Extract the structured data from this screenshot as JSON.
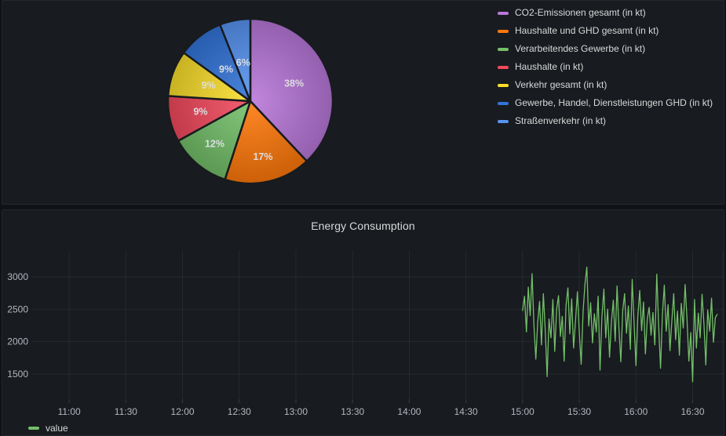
{
  "theme": {
    "page_bg": "#111217",
    "panel_bg": "#181B1F",
    "grid_color": "rgba(204,204,220,0.08)",
    "text_primary": "#D8D9DA",
    "text_secondary": "#B4B7BD",
    "pie_label_color": "#DCDDE1"
  },
  "chart_data": [
    {
      "type": "pie",
      "labels": [
        "CO2-Emissionen gesamt (in kt)",
        "Haushalte und GHD gesamt (in kt)",
        "Verarbeitendes Gewerbe (in kt)",
        "Haushalte (in kt)",
        "Verkehr gesamt (in kt)",
        "Gewerbe, Handel, Dienstleistungen GHD (in kt)",
        "Straßenverkehr (in kt)"
      ],
      "values": [
        38,
        17,
        12,
        9,
        9,
        9,
        6
      ],
      "value_unit": "%",
      "colors": [
        "#B877D9",
        "#FF780A",
        "#73BF69",
        "#F2495C",
        "#FADE2A",
        "#3274D9",
        "#5794F2"
      ],
      "legend_position": "right",
      "start_angle_deg": 0,
      "direction": "clockwise"
    },
    {
      "type": "line",
      "title": "Energy Consumption",
      "x_ticks": [
        "11:00",
        "11:30",
        "12:00",
        "12:30",
        "13:00",
        "13:30",
        "14:00",
        "14:30",
        "15:00",
        "15:30",
        "16:00",
        "16:30"
      ],
      "x_axis_start": "10:40",
      "x_axis_end": "16:46",
      "y_ticks": [
        1500,
        2000,
        2500,
        3000
      ],
      "ylim": [
        1110,
        3410
      ],
      "grid": true,
      "legend_position": "bottom",
      "series": [
        {
          "name": "value",
          "color": "#73BF69",
          "start_time": "15:00",
          "step_minutes": 1,
          "values": [
            2480,
            2700,
            2150,
            2840,
            2400,
            3050,
            2250,
            1730,
            2300,
            2620,
            1950,
            2740,
            2180,
            1460,
            2350,
            2060,
            2650,
            1850,
            2500,
            2710,
            2080,
            2390,
            1700,
            2560,
            2830,
            2120,
            2660,
            1900,
            2310,
            2770,
            2140,
            1650,
            2460,
            2890,
            3150,
            2240,
            2600,
            1980,
            2430,
            2150,
            2700,
            1560,
            2380,
            2810,
            2060,
            2500,
            1760,
            2300,
            2640,
            2010,
            2860,
            2200,
            1690,
            2480,
            2740,
            2130,
            2550,
            1880,
            2960,
            2280,
            1630,
            2400,
            2790,
            2170,
            2610,
            1810,
            2350,
            2530,
            2100,
            2450,
            1950,
            3040,
            2240,
            1590,
            2420,
            2870,
            2160,
            2570,
            1860,
            2320,
            2740,
            2030,
            2470,
            1790,
            2590,
            2210,
            2880,
            2350,
            1700,
            2140,
            1380,
            2650,
            1900,
            2440,
            2060,
            2730,
            2270,
            1640,
            2490,
            2160,
            2670,
            1990,
            2370,
            2420
          ]
        }
      ]
    }
  ]
}
